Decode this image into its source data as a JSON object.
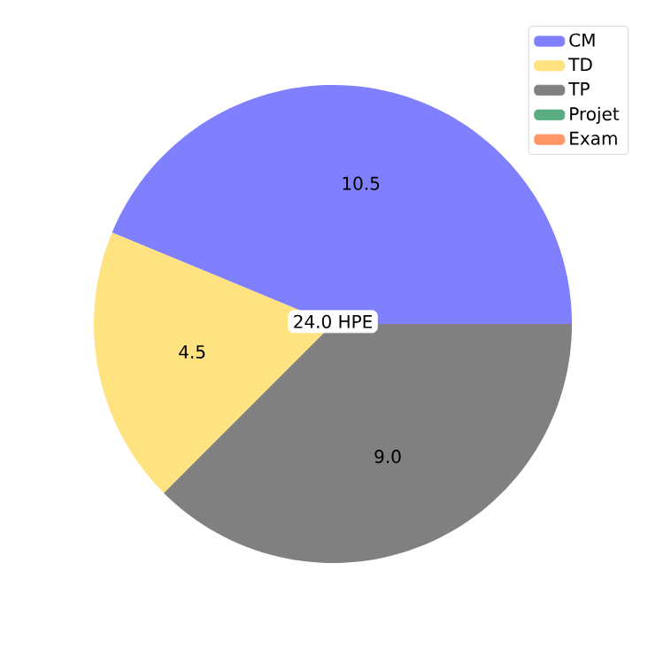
{
  "chart_data": {
    "type": "pie",
    "categories": [
      "CM",
      "TD",
      "TP",
      "Projet",
      "Exam"
    ],
    "values": [
      10.5,
      4.5,
      9.0,
      0.0,
      0.0
    ],
    "colors": [
      "#8080ff",
      "#ffe380",
      "#808080",
      "#5aad80",
      "#ff9666"
    ],
    "value_labels": [
      "10.5",
      "4.5",
      "9.0",
      null,
      null
    ],
    "legend": "top right",
    "annotations": [
      "24.0 HPE"
    ]
  }
}
